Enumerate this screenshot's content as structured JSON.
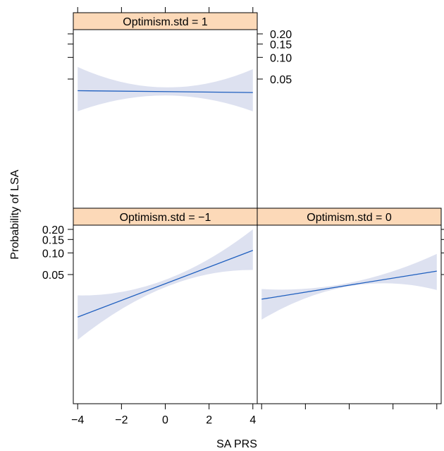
{
  "chart_data": {
    "type": "line",
    "xlabel": "SA PRS",
    "ylabel": "Probability of LSA",
    "y_scale": "logit",
    "x_ticks": [
      "−4",
      "−2",
      "0",
      "2",
      "4"
    ],
    "y_ticks": [
      "0.20",
      "0.15",
      "0.10",
      "0.05"
    ],
    "xlim": [
      -4.2,
      4.2
    ],
    "colors": {
      "line": "#1f5fbf",
      "band": "#dde1f0",
      "strip": "#fcd9b8",
      "axis": "#000000"
    },
    "panels": [
      {
        "strip": "Optimism.std = 1",
        "x": [
          -4,
          4
        ],
        "fit": [
          0.034,
          0.032
        ],
        "lower": [
          0.017,
          0.017
        ],
        "upper": [
          0.074,
          0.069
        ],
        "band_middle": {
          "x": 0,
          "lower": 0.029,
          "upper": 0.038
        }
      },
      {
        "strip": "Optimism.std = −1",
        "x": [
          -4,
          4
        ],
        "fit": [
          0.012,
          0.108
        ],
        "lower": [
          0.0055,
          0.058
        ],
        "upper": [
          0.025,
          0.2
        ],
        "band_middle": {
          "x": 0,
          "lower": 0.033,
          "upper": 0.042
        }
      },
      {
        "strip": "Optimism.std = 0",
        "x": [
          -4,
          4
        ],
        "fit": [
          0.022,
          0.056
        ],
        "lower": [
          0.011,
          0.03
        ],
        "upper": [
          0.031,
          0.097
        ],
        "band_middle": {
          "x": 0,
          "lower": 0.034,
          "upper": 0.038
        }
      }
    ]
  }
}
